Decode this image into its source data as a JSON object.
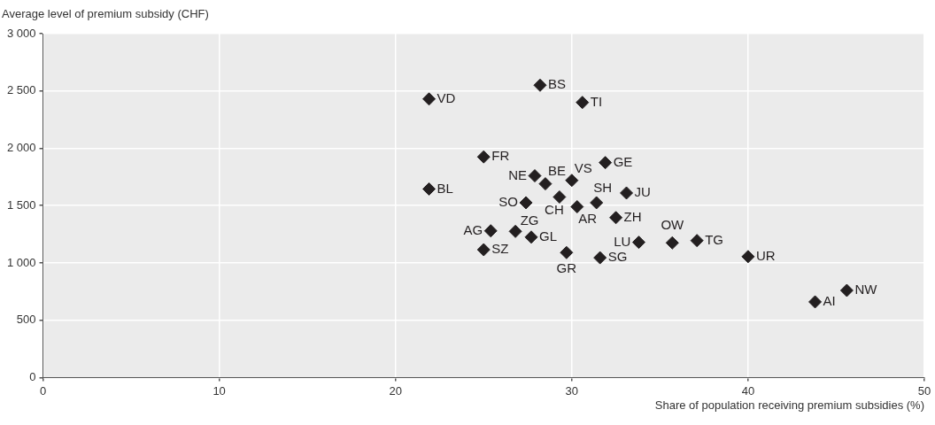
{
  "chart_data": {
    "type": "scatter",
    "xlabel": "Share of population receiving premium subsidies (%)",
    "ylabel": "Average level of premium subsidy (CHF)",
    "x": [
      28.2,
      21.9,
      30.6,
      25.0,
      31.9,
      27.9,
      28.5,
      30.0,
      21.9,
      33.1,
      29.3,
      27.4,
      31.4,
      30.3,
      32.5,
      25.4,
      26.8,
      27.7,
      33.8,
      35.7,
      37.1,
      25.0,
      29.7,
      31.6,
      40.0,
      45.6,
      43.8
    ],
    "series": [
      {
        "color": "#231f20",
        "values": [
          2550,
          2430,
          2400,
          1925,
          1875,
          1760,
          1690,
          1720,
          1645,
          1610,
          1575,
          1525,
          1525,
          1490,
          1395,
          1280,
          1275,
          1225,
          1180,
          1175,
          1195,
          1115,
          1090,
          1045,
          1055,
          760,
          660
        ]
      }
    ],
    "annotations": [
      {
        "text": "BS",
        "x": 28.2,
        "y": 2550
      },
      {
        "text": "VD",
        "x": 21.9,
        "y": 2430
      },
      {
        "text": "TI",
        "x": 30.6,
        "y": 2400
      },
      {
        "text": "FR",
        "x": 25.0,
        "y": 1925
      },
      {
        "text": "GE",
        "x": 31.9,
        "y": 1875
      },
      {
        "text": "NE",
        "x": 27.9,
        "y": 1760
      },
      {
        "text": "BE",
        "x": 28.5,
        "y": 1690
      },
      {
        "text": "VS",
        "x": 30.0,
        "y": 1720
      },
      {
        "text": "BL",
        "x": 21.9,
        "y": 1645
      },
      {
        "text": "JU",
        "x": 33.1,
        "y": 1610
      },
      {
        "text": "CH",
        "x": 29.3,
        "y": 1575
      },
      {
        "text": "SO",
        "x": 27.4,
        "y": 1525
      },
      {
        "text": "SH",
        "x": 31.4,
        "y": 1525
      },
      {
        "text": "AR",
        "x": 30.3,
        "y": 1490
      },
      {
        "text": "ZH",
        "x": 32.5,
        "y": 1395
      },
      {
        "text": "AG",
        "x": 25.4,
        "y": 1280
      },
      {
        "text": "ZG",
        "x": 26.8,
        "y": 1275
      },
      {
        "text": "GL",
        "x": 27.7,
        "y": 1225
      },
      {
        "text": "LU",
        "x": 33.8,
        "y": 1180
      },
      {
        "text": "OW",
        "x": 35.7,
        "y": 1175
      },
      {
        "text": "TG",
        "x": 37.1,
        "y": 1195
      },
      {
        "text": "SZ",
        "x": 25.0,
        "y": 1115
      },
      {
        "text": "GR",
        "x": 29.7,
        "y": 1090
      },
      {
        "text": "SG",
        "x": 31.6,
        "y": 1045
      },
      {
        "text": "UR",
        "x": 40.0,
        "y": 1055
      },
      {
        "text": "NW",
        "x": 45.6,
        "y": 760
      },
      {
        "text": "AI",
        "x": 43.8,
        "y": 660
      }
    ],
    "xlim": [
      0,
      50
    ],
    "xticks": [
      0,
      10,
      20,
      30,
      40,
      50
    ],
    "ylim": [
      0,
      3000
    ],
    "yticks": [
      0,
      {
        "value": 500,
        "label": "500"
      },
      {
        "value": 1000,
        "label": "1 000"
      },
      {
        "value": 1500,
        "label": "1 500"
      },
      {
        "value": 2000,
        "label": "2 000"
      },
      {
        "value": 2500,
        "label": "2 500"
      },
      {
        "value": 3000,
        "label": "3 000"
      }
    ],
    "grid": true,
    "legend": false,
    "marker": "diamond"
  }
}
